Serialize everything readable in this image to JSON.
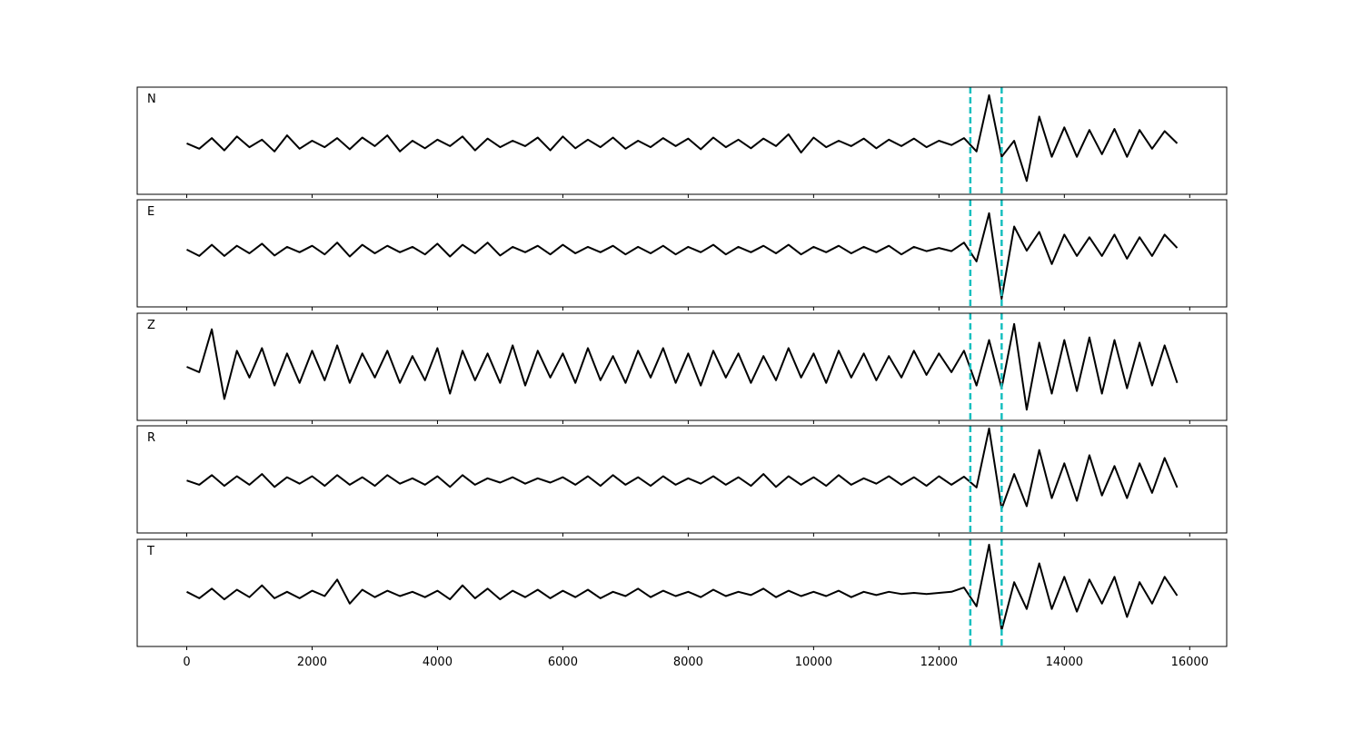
{
  "chart_data": {
    "type": "line",
    "x": [
      0,
      200,
      400,
      600,
      800,
      1000,
      1200,
      1400,
      1600,
      1800,
      2000,
      2200,
      2400,
      2600,
      2800,
      3000,
      3200,
      3400,
      3600,
      3800,
      4000,
      4200,
      4400,
      4600,
      4800,
      5000,
      5200,
      5400,
      5600,
      5800,
      6000,
      6200,
      6400,
      6600,
      6800,
      7000,
      7200,
      7400,
      7600,
      7800,
      8000,
      8200,
      8400,
      8600,
      8800,
      9000,
      9200,
      9400,
      9600,
      9800,
      10000,
      10200,
      10400,
      10600,
      10800,
      11000,
      11200,
      11400,
      11600,
      11800,
      12000,
      12200,
      12400,
      12600,
      12800,
      13000,
      13200,
      13400,
      13600,
      13800,
      14000,
      14200,
      14400,
      14600,
      14800,
      15000,
      15200,
      15400,
      15600,
      15800
    ],
    "series": [
      {
        "name": "N",
        "color": "#000000",
        "values": [
          -0.05,
          -0.15,
          0.05,
          -0.18,
          0.08,
          -0.12,
          0.02,
          -0.2,
          0.1,
          -0.15,
          0.0,
          -0.12,
          0.05,
          -0.16,
          0.06,
          -0.1,
          0.1,
          -0.2,
          0.0,
          -0.14,
          0.02,
          -0.1,
          0.08,
          -0.18,
          0.04,
          -0.12,
          0.0,
          -0.1,
          0.06,
          -0.18,
          0.08,
          -0.14,
          0.02,
          -0.12,
          0.06,
          -0.15,
          0.0,
          -0.12,
          0.05,
          -0.1,
          0.04,
          -0.16,
          0.06,
          -0.12,
          0.02,
          -0.14,
          0.04,
          -0.1,
          0.12,
          -0.22,
          0.06,
          -0.12,
          0.0,
          -0.1,
          0.04,
          -0.14,
          0.02,
          -0.1,
          0.04,
          -0.12,
          0.0,
          -0.08,
          0.05,
          -0.2,
          0.85,
          -0.3,
          0.0,
          -0.75,
          0.45,
          -0.3,
          0.25,
          -0.3,
          0.2,
          -0.25,
          0.22,
          -0.3,
          0.2,
          -0.15,
          0.18,
          -0.05
        ]
      },
      {
        "name": "E",
        "color": "#000000",
        "values": [
          0.07,
          -0.05,
          0.16,
          -0.05,
          0.14,
          0.0,
          0.18,
          -0.04,
          0.12,
          0.02,
          0.14,
          -0.02,
          0.2,
          -0.06,
          0.16,
          0.0,
          0.14,
          0.02,
          0.12,
          -0.02,
          0.18,
          -0.06,
          0.16,
          0.0,
          0.2,
          -0.04,
          0.12,
          0.02,
          0.14,
          -0.02,
          0.16,
          0.0,
          0.12,
          0.02,
          0.14,
          -0.02,
          0.12,
          0.0,
          0.14,
          -0.02,
          0.12,
          0.02,
          0.16,
          -0.02,
          0.12,
          0.02,
          0.14,
          0.0,
          0.16,
          -0.02,
          0.12,
          0.02,
          0.14,
          0.0,
          0.12,
          0.02,
          0.14,
          -0.02,
          0.12,
          0.04,
          0.1,
          0.04,
          0.2,
          -0.15,
          0.75,
          -0.85,
          0.5,
          0.05,
          0.4,
          -0.2,
          0.35,
          -0.05,
          0.3,
          -0.05,
          0.35,
          -0.1,
          0.3,
          -0.05,
          0.35,
          0.1
        ]
      },
      {
        "name": "Z",
        "color": "#000000",
        "values": [
          0.0,
          -0.1,
          0.7,
          -0.6,
          0.3,
          -0.2,
          0.35,
          -0.35,
          0.25,
          -0.3,
          0.3,
          -0.25,
          0.4,
          -0.3,
          0.25,
          -0.2,
          0.3,
          -0.3,
          0.2,
          -0.25,
          0.35,
          -0.5,
          0.3,
          -0.25,
          0.25,
          -0.3,
          0.4,
          -0.35,
          0.3,
          -0.2,
          0.25,
          -0.3,
          0.35,
          -0.25,
          0.2,
          -0.3,
          0.3,
          -0.2,
          0.35,
          -0.3,
          0.25,
          -0.35,
          0.3,
          -0.2,
          0.25,
          -0.3,
          0.2,
          -0.25,
          0.35,
          -0.2,
          0.25,
          -0.3,
          0.3,
          -0.2,
          0.25,
          -0.25,
          0.2,
          -0.2,
          0.3,
          -0.15,
          0.25,
          -0.1,
          0.3,
          -0.35,
          0.5,
          -0.4,
          0.8,
          -0.8,
          0.45,
          -0.5,
          0.5,
          -0.45,
          0.55,
          -0.5,
          0.5,
          -0.4,
          0.45,
          -0.35,
          0.4,
          -0.3
        ]
      },
      {
        "name": "R",
        "color": "#000000",
        "values": [
          -0.02,
          -0.1,
          0.08,
          -0.12,
          0.06,
          -0.1,
          0.1,
          -0.14,
          0.04,
          -0.08,
          0.06,
          -0.12,
          0.08,
          -0.1,
          0.04,
          -0.12,
          0.08,
          -0.08,
          0.02,
          -0.1,
          0.06,
          -0.14,
          0.08,
          -0.1,
          0.02,
          -0.06,
          0.04,
          -0.08,
          0.02,
          -0.06,
          0.04,
          -0.1,
          0.06,
          -0.12,
          0.08,
          -0.1,
          0.04,
          -0.12,
          0.06,
          -0.1,
          0.02,
          -0.08,
          0.06,
          -0.1,
          0.04,
          -0.12,
          0.1,
          -0.14,
          0.06,
          -0.1,
          0.04,
          -0.12,
          0.08,
          -0.1,
          0.02,
          -0.08,
          0.06,
          -0.1,
          0.04,
          -0.12,
          0.06,
          -0.1,
          0.05,
          -0.15,
          0.95,
          -0.55,
          0.1,
          -0.5,
          0.55,
          -0.35,
          0.3,
          -0.4,
          0.45,
          -0.3,
          0.25,
          -0.35,
          0.3,
          -0.25,
          0.4,
          -0.15
        ]
      },
      {
        "name": "T",
        "color": "#000000",
        "values": [
          0.02,
          -0.1,
          0.08,
          -0.12,
          0.06,
          -0.08,
          0.14,
          -0.1,
          0.02,
          -0.1,
          0.04,
          -0.06,
          0.25,
          -0.2,
          0.06,
          -0.08,
          0.04,
          -0.06,
          0.02,
          -0.08,
          0.04,
          -0.12,
          0.14,
          -0.1,
          0.08,
          -0.12,
          0.04,
          -0.08,
          0.06,
          -0.1,
          0.04,
          -0.08,
          0.06,
          -0.1,
          0.02,
          -0.06,
          0.08,
          -0.08,
          0.04,
          -0.06,
          0.02,
          -0.08,
          0.06,
          -0.06,
          0.02,
          -0.04,
          0.08,
          -0.08,
          0.04,
          -0.06,
          0.02,
          -0.06,
          0.04,
          -0.08,
          0.02,
          -0.04,
          0.02,
          -0.02,
          0.0,
          -0.02,
          0.0,
          0.02,
          0.1,
          -0.25,
          0.9,
          -0.7,
          0.2,
          -0.3,
          0.55,
          -0.3,
          0.3,
          -0.35,
          0.25,
          -0.2,
          0.3,
          -0.45,
          0.2,
          -0.2,
          0.3,
          -0.05
        ]
      }
    ],
    "vlines": [
      12500,
      13000
    ],
    "vline_color": "#17bfbf",
    "xlim": [
      -790,
      16590
    ],
    "xticks": [
      0,
      2000,
      4000,
      6000,
      8000,
      10000,
      12000,
      14000,
      16000
    ],
    "ylim": [
      -1,
      1
    ]
  }
}
